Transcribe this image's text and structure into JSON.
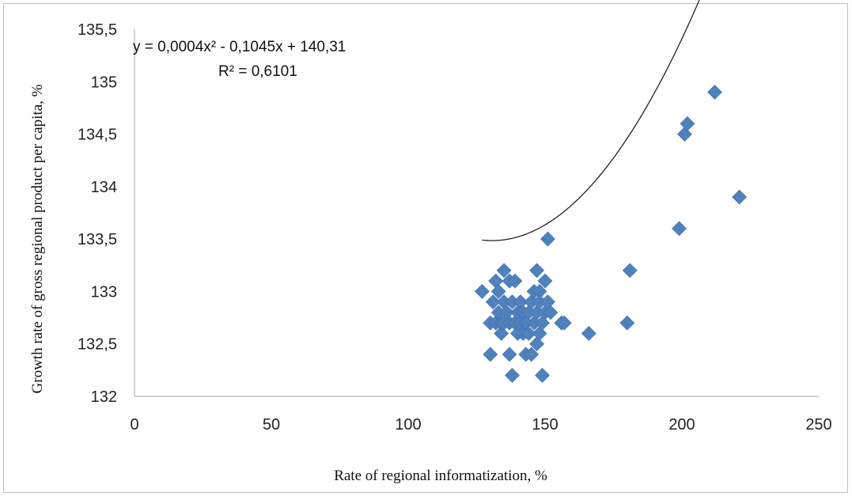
{
  "chart_data": {
    "type": "scatter",
    "title": "",
    "xlabel": "Rate of regional informatization, %",
    "ylabel": "Growth rate of gross regional product per capita, %",
    "xlim": [
      0,
      250
    ],
    "ylim": [
      132,
      135.5
    ],
    "xticks": [
      "0",
      "50",
      "100",
      "150",
      "200",
      "250"
    ],
    "yticks": [
      "132",
      "132,5",
      "133",
      "133,5",
      "134",
      "134,5",
      "135",
      "135,5"
    ],
    "grid": false,
    "legend": "none",
    "marker": "diamond",
    "marker_color": "#4f81bd",
    "trendline_color": "#222222",
    "trendline": {
      "kind": "polynomial",
      "equation": "y = 0,0004x² - 0,1045x + 140,31",
      "r_squared": "R² = 0,6101",
      "a": 0.0004,
      "b": -0.1045,
      "c": 140.31,
      "x_range": [
        127,
        222
      ]
    },
    "points": [
      {
        "x": 127,
        "y": 133.0
      },
      {
        "x": 130,
        "y": 132.4
      },
      {
        "x": 130,
        "y": 132.7
      },
      {
        "x": 131,
        "y": 132.9
      },
      {
        "x": 132,
        "y": 133.1
      },
      {
        "x": 132,
        "y": 132.7
      },
      {
        "x": 133,
        "y": 133.0
      },
      {
        "x": 133,
        "y": 132.8
      },
      {
        "x": 134,
        "y": 132.6
      },
      {
        "x": 134,
        "y": 132.7
      },
      {
        "x": 135,
        "y": 133.2
      },
      {
        "x": 135,
        "y": 132.9
      },
      {
        "x": 135,
        "y": 132.7
      },
      {
        "x": 136,
        "y": 132.8
      },
      {
        "x": 137,
        "y": 133.1
      },
      {
        "x": 137,
        "y": 132.4
      },
      {
        "x": 137,
        "y": 132.7
      },
      {
        "x": 138,
        "y": 132.2
      },
      {
        "x": 138,
        "y": 132.9
      },
      {
        "x": 139,
        "y": 133.1
      },
      {
        "x": 139,
        "y": 132.7
      },
      {
        "x": 140,
        "y": 132.6
      },
      {
        "x": 140,
        "y": 132.8
      },
      {
        "x": 141,
        "y": 132.7
      },
      {
        "x": 141,
        "y": 132.9
      },
      {
        "x": 142,
        "y": 132.6
      },
      {
        "x": 142,
        "y": 132.8
      },
      {
        "x": 143,
        "y": 132.4
      },
      {
        "x": 143,
        "y": 132.7
      },
      {
        "x": 144,
        "y": 132.6
      },
      {
        "x": 144,
        "y": 132.8
      },
      {
        "x": 145,
        "y": 132.4
      },
      {
        "x": 145,
        "y": 132.9
      },
      {
        "x": 146,
        "y": 133.0
      },
      {
        "x": 146,
        "y": 132.7
      },
      {
        "x": 147,
        "y": 133.2
      },
      {
        "x": 147,
        "y": 132.5
      },
      {
        "x": 147,
        "y": 132.8
      },
      {
        "x": 148,
        "y": 133.0
      },
      {
        "x": 148,
        "y": 132.6
      },
      {
        "x": 148,
        "y": 132.9
      },
      {
        "x": 149,
        "y": 132.2
      },
      {
        "x": 149,
        "y": 132.7
      },
      {
        "x": 150,
        "y": 133.1
      },
      {
        "x": 150,
        "y": 132.8
      },
      {
        "x": 151,
        "y": 132.9
      },
      {
        "x": 151,
        "y": 133.5
      },
      {
        "x": 152,
        "y": 132.8
      },
      {
        "x": 156,
        "y": 132.7
      },
      {
        "x": 157,
        "y": 132.7
      },
      {
        "x": 166,
        "y": 132.6
      },
      {
        "x": 180,
        "y": 132.7
      },
      {
        "x": 181,
        "y": 133.2
      },
      {
        "x": 199,
        "y": 133.6
      },
      {
        "x": 201,
        "y": 134.5
      },
      {
        "x": 202,
        "y": 134.6
      },
      {
        "x": 212,
        "y": 134.9
      },
      {
        "x": 221,
        "y": 133.9
      }
    ]
  }
}
